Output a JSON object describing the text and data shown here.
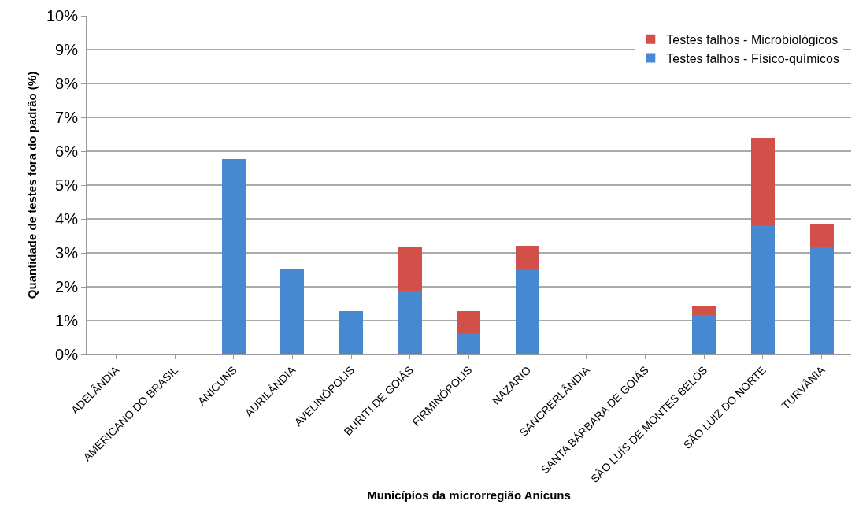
{
  "chart_data": {
    "type": "bar",
    "stacked": true,
    "xlabel": "Municípios da microrregião Anicuns",
    "ylabel": "Quantidade de testes fora do padrão (%)",
    "categories": [
      "ADELÂNDIA",
      "AMERICANO DO BRASIL",
      "ANICUNS",
      "AURILÂNDIA",
      "AVELINÓPOLIS",
      "BURITI DE GOIÁS",
      "FIRMINÓPOLIS",
      "NAZÁRIO",
      "SANCRERLÂNDIA",
      "SANTA BÁRBARA DE GOIÁS",
      "SÃO LUÍS DE MONTES BELOS",
      "SÃO LUIZ DO NORTE",
      "TURVÂNIA"
    ],
    "series": [
      {
        "name": "Testes falhos - Físico-químicos",
        "color": "#4689d0",
        "values": [
          0,
          0,
          5.76,
          2.54,
          1.27,
          1.89,
          0.62,
          2.52,
          0,
          0,
          1.16,
          3.82,
          3.18
        ]
      },
      {
        "name": "Testes falhos - Microbiológicos",
        "color": "#d2504a",
        "values": [
          0,
          0,
          0,
          0,
          0,
          1.3,
          0.65,
          0.68,
          0,
          0,
          0.28,
          2.58,
          0.65
        ]
      }
    ],
    "ylim": [
      0,
      10
    ],
    "yticks": [
      {
        "value": 0,
        "label": "0%"
      },
      {
        "value": 1,
        "label": "1%"
      },
      {
        "value": 2,
        "label": "2%"
      },
      {
        "value": 3,
        "label": "3%"
      },
      {
        "value": 4,
        "label": "4%"
      },
      {
        "value": 5,
        "label": "5%"
      },
      {
        "value": 6,
        "label": "6%"
      },
      {
        "value": 7,
        "label": "7%"
      },
      {
        "value": 8,
        "label": "8%"
      },
      {
        "value": 9,
        "label": "9%"
      },
      {
        "value": 10,
        "label": "10%"
      }
    ],
    "grid": "y",
    "legend": "top right"
  }
}
